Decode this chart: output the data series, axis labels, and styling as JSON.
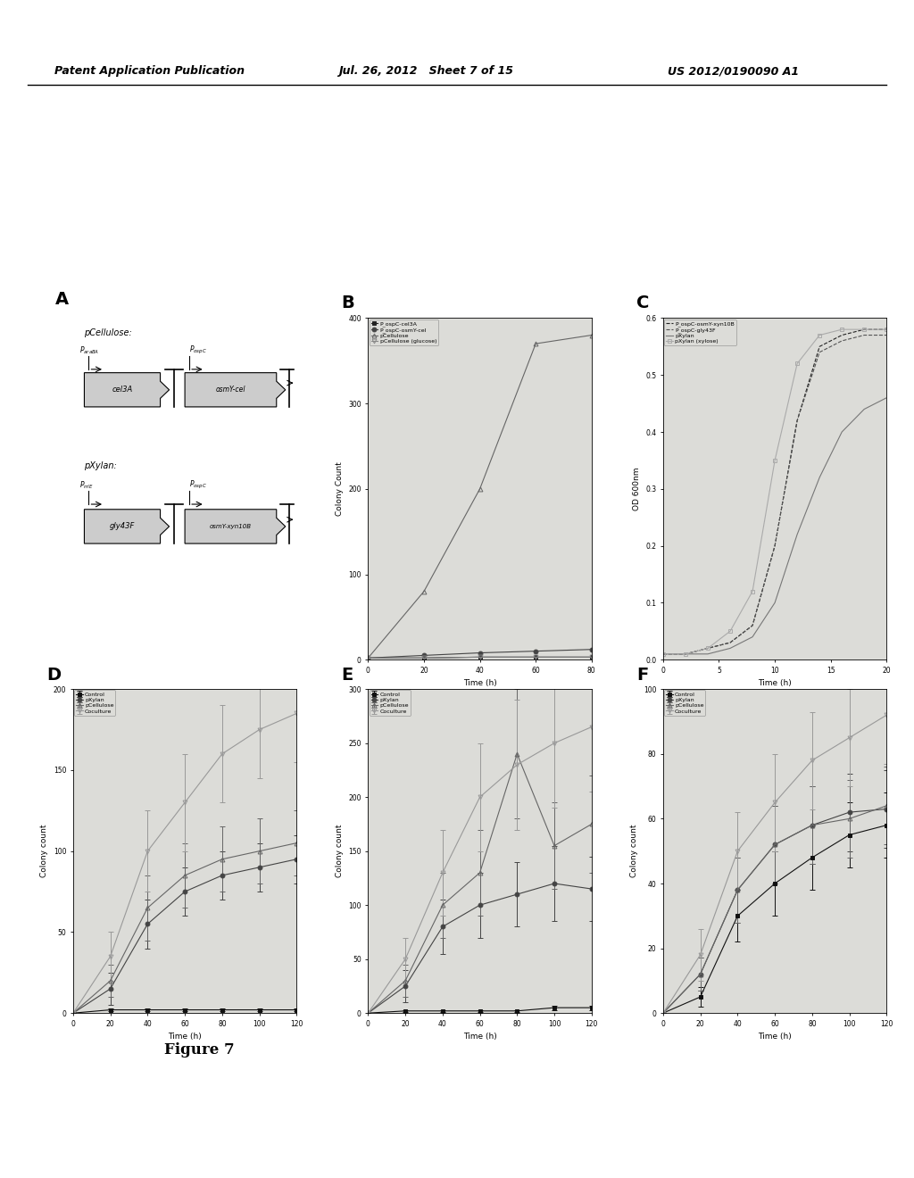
{
  "header_left": "Patent Application Publication",
  "header_mid": "Jul. 26, 2012   Sheet 7 of 15",
  "header_right": "US 2012/0190090 A1",
  "figure_label": "Figure 7",
  "bg_color": "#ffffff",
  "panel_bg": "#dcdcd8",
  "panel_B": {
    "label": "B",
    "xlabel": "Time (h)",
    "ylabel": "Colony Count",
    "ylim": [
      0,
      400
    ],
    "yticks": [
      0,
      100,
      200,
      300,
      400
    ],
    "xlim": [
      0,
      80
    ],
    "xticks": [
      0,
      20,
      40,
      60,
      80
    ],
    "series": [
      {
        "label": "P_ospC-cel3A",
        "marker": "s",
        "color": "#222222",
        "fillstyle": "full",
        "linestyle": "-",
        "x": [
          0,
          20,
          40,
          60,
          80
        ],
        "y": [
          2,
          2,
          3,
          3,
          3
        ]
      },
      {
        "label": "P_ospC-osmY-cel",
        "marker": "o",
        "color": "#444444",
        "fillstyle": "full",
        "linestyle": "-",
        "x": [
          0,
          20,
          40,
          60,
          80
        ],
        "y": [
          2,
          5,
          8,
          10,
          12
        ]
      },
      {
        "label": "pCellulose",
        "marker": "^",
        "color": "#666666",
        "fillstyle": "none",
        "linestyle": "-",
        "x": [
          0,
          20,
          40,
          60,
          80
        ],
        "y": [
          2,
          80,
          200,
          370,
          380
        ]
      },
      {
        "label": "pCellulose (glucose)",
        "marker": "v",
        "color": "#888888",
        "fillstyle": "none",
        "linestyle": "-",
        "x": [
          0,
          20,
          40,
          60,
          80
        ],
        "y": [
          2,
          2,
          3,
          3,
          3
        ]
      }
    ]
  },
  "panel_C": {
    "label": "C",
    "xlabel": "Time (h)",
    "ylabel": "OD 600nm",
    "ylim": [
      0.0,
      0.6
    ],
    "yticks": [
      0.0,
      0.1,
      0.2,
      0.3,
      0.4,
      0.5,
      0.6
    ],
    "xlim": [
      0,
      20
    ],
    "xticks": [
      0,
      5,
      10,
      15,
      20
    ],
    "series": [
      {
        "label": "P_ospC-osmY-xyn10B",
        "marker": "none",
        "color": "#222222",
        "fillstyle": "none",
        "linestyle": "--",
        "x": [
          0,
          2,
          4,
          6,
          8,
          10,
          12,
          14,
          16,
          18,
          20
        ],
        "y": [
          0.01,
          0.01,
          0.02,
          0.03,
          0.06,
          0.2,
          0.42,
          0.55,
          0.57,
          0.58,
          0.58
        ]
      },
      {
        "label": "P_ospC-gly43F",
        "marker": "none",
        "color": "#555555",
        "fillstyle": "none",
        "linestyle": "--",
        "x": [
          0,
          2,
          4,
          6,
          8,
          10,
          12,
          14,
          16,
          18,
          20
        ],
        "y": [
          0.01,
          0.01,
          0.02,
          0.03,
          0.06,
          0.2,
          0.42,
          0.54,
          0.56,
          0.57,
          0.57
        ]
      },
      {
        "label": "pXylan",
        "marker": "none",
        "color": "#777777",
        "fillstyle": "none",
        "linestyle": "-",
        "x": [
          0,
          2,
          4,
          6,
          8,
          10,
          12,
          14,
          16,
          18,
          20
        ],
        "y": [
          0.01,
          0.01,
          0.01,
          0.02,
          0.04,
          0.1,
          0.22,
          0.32,
          0.4,
          0.44,
          0.46
        ]
      },
      {
        "label": "pXylan (xylose)",
        "marker": "s",
        "color": "#aaaaaa",
        "fillstyle": "none",
        "linestyle": "-",
        "x": [
          0,
          2,
          4,
          6,
          8,
          10,
          12,
          14,
          16,
          18,
          20
        ],
        "y": [
          0.01,
          0.01,
          0.02,
          0.05,
          0.12,
          0.35,
          0.52,
          0.57,
          0.58,
          0.58,
          0.58
        ]
      }
    ]
  },
  "panel_D": {
    "label": "D",
    "xlabel": "Time (h)",
    "ylabel": "Colony count",
    "ylim": [
      0,
      200
    ],
    "yticks": [
      0,
      50,
      100,
      150,
      200
    ],
    "xlim": [
      0,
      120
    ],
    "xticks": [
      0,
      20,
      40,
      60,
      80,
      100,
      120
    ],
    "series": [
      {
        "label": "Control",
        "marker": "s",
        "color": "#111111",
        "fillstyle": "full",
        "linestyle": "-",
        "x": [
          0,
          20,
          40,
          60,
          80,
          100,
          120
        ],
        "y": [
          0,
          2,
          2,
          2,
          2,
          2,
          2
        ],
        "yerr": [
          0,
          1,
          1,
          1,
          1,
          1,
          1
        ]
      },
      {
        "label": "pXylan",
        "marker": "o",
        "color": "#444444",
        "fillstyle": "full",
        "linestyle": "-",
        "x": [
          0,
          20,
          40,
          60,
          80,
          100,
          120
        ],
        "y": [
          0,
          15,
          55,
          75,
          85,
          90,
          95
        ],
        "yerr": [
          0,
          10,
          15,
          15,
          15,
          15,
          15
        ]
      },
      {
        "label": "pCellulose",
        "marker": "^",
        "color": "#666666",
        "fillstyle": "none",
        "linestyle": "-",
        "x": [
          0,
          20,
          40,
          60,
          80,
          100,
          120
        ],
        "y": [
          0,
          20,
          65,
          85,
          95,
          100,
          105
        ],
        "yerr": [
          0,
          10,
          20,
          20,
          20,
          20,
          20
        ]
      },
      {
        "label": "Coculture",
        "marker": "v",
        "color": "#999999",
        "fillstyle": "none",
        "linestyle": "-",
        "x": [
          0,
          20,
          40,
          60,
          80,
          100,
          120
        ],
        "y": [
          0,
          35,
          100,
          130,
          160,
          175,
          185
        ],
        "yerr": [
          0,
          15,
          25,
          30,
          30,
          30,
          30
        ]
      }
    ]
  },
  "panel_E": {
    "label": "E",
    "xlabel": "Time (h)",
    "ylabel": "Colony count",
    "ylim": [
      0,
      300
    ],
    "yticks": [
      0,
      50,
      100,
      150,
      200,
      250,
      300
    ],
    "xlim": [
      0,
      120
    ],
    "xticks": [
      0,
      20,
      40,
      60,
      80,
      100,
      120
    ],
    "series": [
      {
        "label": "Control",
        "marker": "s",
        "color": "#111111",
        "fillstyle": "full",
        "linestyle": "-",
        "x": [
          0,
          20,
          40,
          60,
          80,
          100,
          120
        ],
        "y": [
          0,
          2,
          2,
          2,
          2,
          5,
          5
        ],
        "yerr": [
          0,
          1,
          1,
          1,
          1,
          2,
          2
        ]
      },
      {
        "label": "pXylan",
        "marker": "o",
        "color": "#444444",
        "fillstyle": "full",
        "linestyle": "-",
        "x": [
          0,
          20,
          40,
          60,
          80,
          100,
          120
        ],
        "y": [
          0,
          25,
          80,
          100,
          110,
          120,
          115
        ],
        "yerr": [
          0,
          15,
          25,
          30,
          30,
          35,
          30
        ]
      },
      {
        "label": "pCellulose",
        "marker": "^",
        "color": "#666666",
        "fillstyle": "none",
        "linestyle": "-",
        "x": [
          0,
          20,
          40,
          60,
          80,
          100,
          120
        ],
        "y": [
          0,
          30,
          100,
          130,
          240,
          155,
          175
        ],
        "yerr": [
          0,
          15,
          30,
          40,
          60,
          40,
          45
        ]
      },
      {
        "label": "Coculture",
        "marker": "v",
        "color": "#999999",
        "fillstyle": "none",
        "linestyle": "-",
        "x": [
          0,
          20,
          40,
          60,
          80,
          100,
          120
        ],
        "y": [
          0,
          50,
          130,
          200,
          230,
          250,
          265
        ],
        "yerr": [
          0,
          20,
          40,
          50,
          60,
          60,
          60
        ]
      }
    ]
  },
  "panel_F": {
    "label": "F",
    "xlabel": "Time (h)",
    "ylabel": "Colony count",
    "ylim": [
      0,
      100
    ],
    "yticks": [
      0,
      20,
      40,
      60,
      80,
      100
    ],
    "xlim": [
      0,
      120
    ],
    "xticks": [
      0,
      20,
      40,
      60,
      80,
      100,
      120
    ],
    "series": [
      {
        "label": "Control",
        "marker": "s",
        "color": "#111111",
        "fillstyle": "full",
        "linestyle": "-",
        "x": [
          0,
          20,
          40,
          60,
          80,
          100,
          120
        ],
        "y": [
          0,
          5,
          30,
          40,
          48,
          55,
          58
        ],
        "yerr": [
          0,
          3,
          8,
          10,
          10,
          10,
          10
        ]
      },
      {
        "label": "pXylan",
        "marker": "o",
        "color": "#444444",
        "fillstyle": "full",
        "linestyle": "-",
        "x": [
          0,
          20,
          40,
          60,
          80,
          100,
          120
        ],
        "y": [
          0,
          12,
          38,
          52,
          58,
          62,
          63
        ],
        "yerr": [
          0,
          5,
          10,
          12,
          12,
          12,
          12
        ]
      },
      {
        "label": "pCellulose",
        "marker": "^",
        "color": "#666666",
        "fillstyle": "none",
        "linestyle": "-",
        "x": [
          0,
          20,
          40,
          60,
          80,
          100,
          120
        ],
        "y": [
          0,
          12,
          38,
          52,
          58,
          60,
          64
        ],
        "yerr": [
          0,
          5,
          10,
          12,
          12,
          12,
          12
        ]
      },
      {
        "label": "Coculture",
        "marker": "v",
        "color": "#999999",
        "fillstyle": "none",
        "linestyle": "-",
        "x": [
          0,
          20,
          40,
          60,
          80,
          100,
          120
        ],
        "y": [
          0,
          18,
          50,
          65,
          78,
          85,
          92
        ],
        "yerr": [
          0,
          8,
          12,
          15,
          15,
          15,
          15
        ]
      }
    ]
  }
}
